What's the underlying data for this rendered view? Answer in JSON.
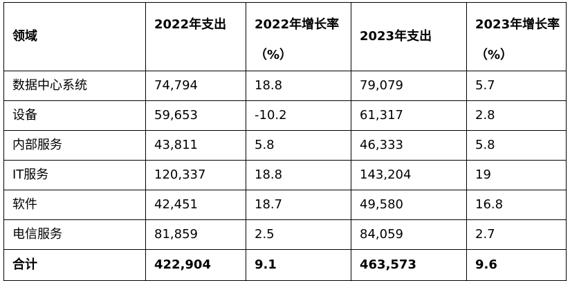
{
  "table": {
    "headers": [
      "领域",
      "2022年支出",
      "2022年增长率（%）",
      "2023年支出",
      "2023年增长率（%）"
    ],
    "rows": [
      [
        "数据中心系统",
        "74,794",
        "18.8",
        "79,079",
        "5.7"
      ],
      [
        "设备",
        "59,653",
        "-10.2",
        "61,317",
        "2.8"
      ],
      [
        "内部服务",
        "43,811",
        "5.8",
        "46,333",
        "5.8"
      ],
      [
        "IT服务",
        "120,337",
        "18.8",
        "143,204",
        "19"
      ],
      [
        "软件",
        "42,451",
        "18.7",
        "49,580",
        "16.8"
      ],
      [
        "电信服务",
        "81,859",
        "2.5",
        "84,059",
        "2.7"
      ]
    ],
    "total": [
      "合计",
      "422,904",
      "9.1",
      "463,573",
      "9.6"
    ]
  }
}
